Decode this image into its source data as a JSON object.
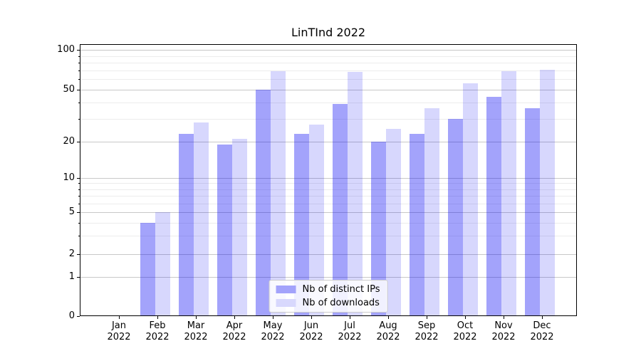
{
  "figure": {
    "background": "#ffffff"
  },
  "chart_data": {
    "type": "bar",
    "title": "LinTInd 2022",
    "categories": [
      "Jan",
      "Feb",
      "Mar",
      "Apr",
      "May",
      "Jun",
      "Jul",
      "Aug",
      "Sep",
      "Oct",
      "Nov",
      "Dec"
    ],
    "year_label": "2022",
    "series": [
      {
        "name": "Nb of distinct IPs",
        "color": "rgba(0,0,245,0.36)",
        "legend_color": "#a3a3fb",
        "values": [
          0,
          4,
          23,
          19,
          50,
          23,
          39,
          20,
          23,
          30,
          44,
          36
        ]
      },
      {
        "name": "Nb of downloads",
        "color": "rgba(0,0,245,0.155)",
        "legend_color": "#d8d8fd",
        "values": [
          0,
          5,
          28,
          21,
          69,
          27,
          68,
          25,
          36,
          56,
          69,
          71
        ]
      }
    ],
    "yscale": "symlog",
    "ylim": [
      0,
      100
    ],
    "y_ticks": [
      0,
      1,
      2,
      5,
      10,
      20,
      50,
      100
    ],
    "y_minor_ticks": [
      3,
      4,
      6,
      7,
      8,
      9,
      30,
      40,
      60,
      70,
      80,
      90
    ],
    "grid": "both",
    "legend_position": "lower center"
  }
}
